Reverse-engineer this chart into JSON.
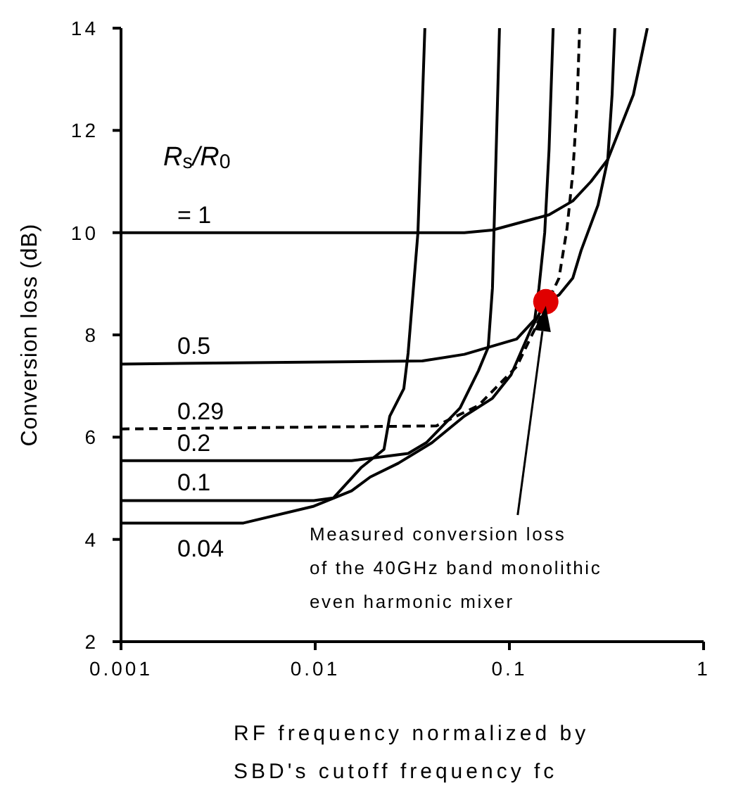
{
  "chart_data": {
    "type": "line",
    "xlabel": "RF frequency normalized by\nSBD's cutoff frequency fc",
    "ylabel": "Conversion loss (dB)",
    "log": "x",
    "xlim": [
      0.001,
      1
    ],
    "xticks": [
      0.001,
      0.01,
      0.1,
      1
    ],
    "ylim": [
      2,
      14
    ],
    "yticks": [
      2,
      4,
      6,
      8,
      10,
      12,
      14
    ],
    "marker": "none",
    "series": [
      {
        "name": "= 1",
        "color": "#000000",
        "line_style": "solid",
        "x": [
          0.001,
          0.0586,
          0.0818,
          0.16,
          0.212,
          0.263,
          0.321,
          0.435,
          0.513
        ],
        "values": [
          10.0,
          10.0,
          10.05,
          10.35,
          10.62,
          11.0,
          11.43,
          12.7,
          14
        ]
      },
      {
        "name": "0.5",
        "color": "#000000",
        "line_style": "solid",
        "x": [
          0.001,
          0.0356,
          0.0586,
          0.109,
          0.135,
          0.142,
          0.152,
          0.16,
          0.168
        ],
        "values": [
          7.43,
          7.49,
          7.62,
          7.92,
          8.3,
          8.92,
          10.0,
          11.62,
          14
        ]
      },
      {
        "name": "0.29",
        "color": "#000000",
        "line_style": "dashed",
        "x": [
          0.001,
          0.042,
          0.0693,
          0.109,
          0.135,
          0.18,
          0.198,
          0.212,
          0.223,
          0.23
        ],
        "values": [
          6.16,
          6.22,
          6.62,
          7.38,
          8.11,
          9.11,
          10.08,
          11.16,
          12.51,
          14
        ]
      },
      {
        "name": "0.2",
        "color": "#000000",
        "line_style": "solid",
        "x": [
          0.001,
          0.0154,
          0.0301,
          0.0373,
          0.0557,
          0.0693,
          0.0778,
          0.0818,
          0.0889
        ],
        "values": [
          5.54,
          5.54,
          5.68,
          5.89,
          6.57,
          7.3,
          7.76,
          8.92,
          14
        ]
      },
      {
        "name": "0.1",
        "color": "#000000",
        "line_style": "solid",
        "x": [
          0.001,
          0.00984,
          0.0124,
          0.0173,
          0.0226,
          0.0242,
          0.0286,
          0.0301,
          0.0338,
          0.0367
        ],
        "values": [
          4.76,
          4.76,
          4.81,
          5.41,
          5.76,
          6.41,
          6.95,
          7.65,
          10.0,
          14
        ]
      },
      {
        "name": "0.04",
        "color": "#000000",
        "line_style": "solid",
        "x": [
          0.001,
          0.00427,
          0.00984,
          0.0154,
          0.0192,
          0.0268,
          0.0399,
          0.0586,
          0.0818,
          0.102,
          0.129,
          0.154,
          0.18,
          0.212,
          0.234,
          0.286,
          0.321,
          0.338,
          0.349
        ],
        "values": [
          4.32,
          4.32,
          4.65,
          4.95,
          5.22,
          5.49,
          5.89,
          6.41,
          6.76,
          7.22,
          8.11,
          8.65,
          8.78,
          9.11,
          9.65,
          10.54,
          11.43,
          12.7,
          14
        ]
      },
      {
        "type": "scatter",
        "color": "#e00000",
        "marker": "circle",
        "x": [
          0.154
        ],
        "values": [
          8.65
        ]
      }
    ],
    "annotations": [
      "R$_{s}$/R$_{0}$",
      "Measured conversion loss\nof the 40GHz band monolithic\neven harmonic mixer"
    ]
  }
}
